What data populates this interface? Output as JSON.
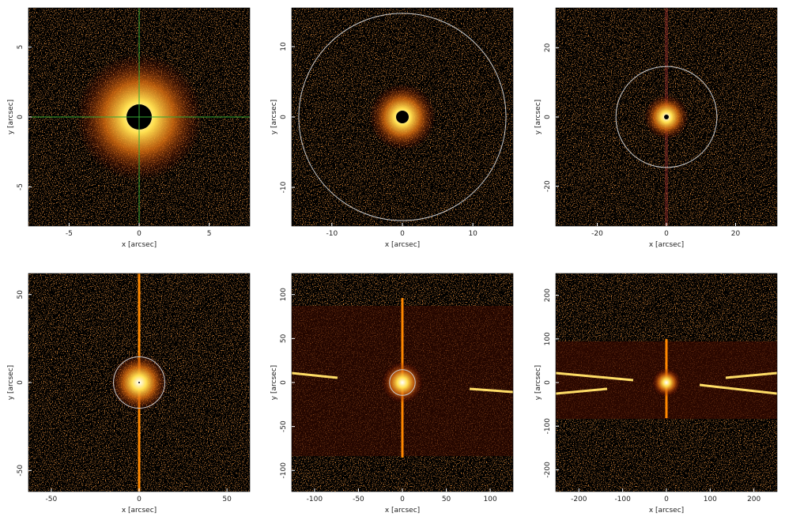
{
  "chart_data": [
    {
      "type": "image",
      "xlabel": "x [arcsec]",
      "ylabel": "y [arcsec]",
      "xlim": [
        -7.9,
        7.9
      ],
      "ylim": [
        -7.8,
        7.8
      ],
      "xticks": [
        -5,
        0,
        5
      ],
      "yticks": [
        -5,
        0,
        5
      ]
    },
    {
      "type": "image",
      "xlabel": "x [arcsec]",
      "ylabel": "y [arcsec]",
      "xlim": [
        -15.7,
        15.7
      ],
      "ylim": [
        -15.5,
        15.5
      ],
      "xticks": [
        -10,
        0,
        10
      ],
      "yticks": [
        -10,
        0,
        10
      ]
    },
    {
      "type": "image",
      "xlabel": "x [arcsec]",
      "ylabel": "y [arcsec]",
      "xlim": [
        -32,
        32
      ],
      "ylim": [
        -31.5,
        31.5
      ],
      "xticks": [
        -20,
        0,
        20
      ],
      "yticks": [
        -20,
        0,
        20
      ]
    },
    {
      "type": "image",
      "xlabel": "x [arcsec]",
      "ylabel": "y [arcsec]",
      "xlim": [
        -63,
        63
      ],
      "ylim": [
        -62,
        62
      ],
      "xticks": [
        -50,
        0,
        50
      ],
      "yticks": [
        -50,
        0,
        50
      ]
    },
    {
      "type": "image",
      "xlabel": "x [arcsec]",
      "ylabel": "y [arcsec]",
      "xlim": [
        -126,
        126
      ],
      "ylim": [
        -124,
        124
      ],
      "xticks": [
        -100,
        -50,
        0,
        50,
        100
      ],
      "yticks": [
        -100,
        -50,
        0,
        50,
        100
      ]
    },
    {
      "type": "image",
      "xlabel": "x [arcsec]",
      "ylabel": "y [arcsec]",
      "xlim": [
        -253,
        253
      ],
      "ylim": [
        -250,
        250
      ],
      "xticks": [
        -200,
        -100,
        0,
        100,
        200
      ],
      "yticks": [
        -200,
        -100,
        0,
        100,
        200
      ]
    }
  ]
}
